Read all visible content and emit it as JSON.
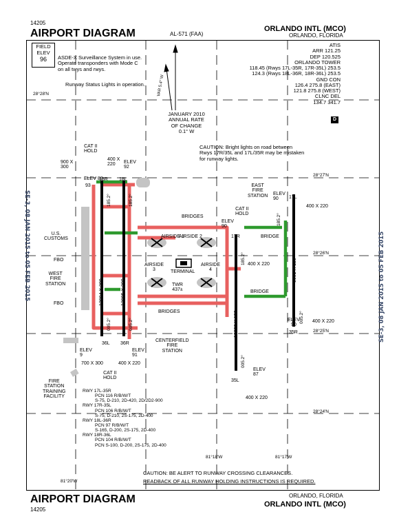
{
  "header": {
    "doc_number": "14205",
    "title": "AIRPORT DIAGRAM",
    "procedure_id": "AL-571 (FAA)",
    "airport_name": "ORLANDO INTL (MCO)",
    "location": "ORLANDO, FLORIDA"
  },
  "footer": {
    "title": "AIRPORT DIAGRAM",
    "doc_number": "14205",
    "location": "ORLANDO, FLORIDA",
    "airport_name": "ORLANDO INTL (MCO)"
  },
  "side_notes": {
    "left": "SE-3, 08 JAN 2015 to 05 FEB 2015",
    "right": "SE-3, 08 JAN 2015 to 05 FEB 2015"
  },
  "field_elev": {
    "label1": "FIELD",
    "label2": "ELEV",
    "value": "96"
  },
  "notes": {
    "asde_1": "ASDE-X Surveillance System in use.",
    "asde_2": "Operate transponders with Mode C",
    "asde_3": "on all twys and rwys.",
    "rwsl": "Runway Status Lights in operation.",
    "caution_lights_1": "CAUTION:  Bright lights on road between",
    "caution_lights_2": "Rwys 17R/35L and 17L/35R may be mistaken",
    "caution_lights_3": "for runway lights.",
    "caution_bottom_1": "CAUTION: BE ALERT TO RUNWAY CROSSING CLEARANCES.",
    "caution_bottom_2": "READBACK OF ALL RUNWAY HOLDING INSTRUCTIONS IS REQUIRED."
  },
  "frequencies": [
    "ATIS",
    "ARR 121.25",
    "DEP 120.525",
    "ORLANDO TOWER",
    "118.45 (Rwys 17L-35R, 17R-35L) 253.5",
    "124.3 (Rwys 18L-36R, 18R-36L) 253.5",
    "GND CON",
    "126.4 275.8 (EAST)",
    "121.8 275.8 (WEST)",
    "CLNC DEL",
    "134.7 341.7"
  ],
  "d_symbol": "D",
  "variation": {
    "label": "VAR 5.4° W",
    "change_1": "JANUARY 2010",
    "change_2": "ANNUAL RATE",
    "change_3": "OF CHANGE",
    "change_4": "0.1° W"
  },
  "latitudes": [
    "28°28'N",
    "28°27'N",
    "28°26'N",
    "28°25'N",
    "28°24'N"
  ],
  "longitudes": [
    "81°20'W",
    "81°18'W",
    "81°17'W"
  ],
  "runways": {
    "r18r_len": "12004 X 200",
    "r18l_len": "12005 X 200",
    "r17r_len": "10000 X 150",
    "r17l_len": "9001 X 150",
    "hdg_185": "185.2°",
    "hdg_005": "005.2°",
    "r18r": "18R",
    "r18l": "18L",
    "r36l": "36L",
    "r36r": "36R",
    "r17r": "17R",
    "r17l": "17L",
    "r35l": "35L",
    "r35r": "35R"
  },
  "labels": {
    "cat2_hold_top_1": "CAT II",
    "cat2_hold_top_2": "HOLD",
    "dim_900x300": "900 X",
    "dim_900x300b": "300",
    "dim_400x220_a": "400 X",
    "dim_400x220_ab": "220",
    "elev_92_a": "ELEV",
    "elev_92_b": "92",
    "elev_88_a": "ELEV 88",
    "elev_93": "93",
    "us_customs_1": "U.S.",
    "us_customs_2": "CUSTOMS",
    "fbo_top": "FBO",
    "fbo_bottom": "FBO",
    "west_fire_1": "WEST",
    "west_fire_2": "FIRE",
    "west_fire_3": "STATION",
    "bridges_top": "BRIDGES",
    "bridges_bottom": "BRIDGES",
    "airside1": "AIRSIDE 1",
    "airside2": "AIRSIDE 2",
    "airside3_a": "AIRSIDE",
    "airside3_b": "3",
    "airside4_a": "AIRSIDE",
    "airside4_b": "4",
    "terminal": "TERMINAL",
    "twr_a": "TWR",
    "twr_b": "437±",
    "cat2_hold_mid_1": "CAT II",
    "cat2_hold_mid_2": "HOLD",
    "elev_90_mid_a": "ELEV",
    "elev_90_mid_b": "90",
    "dim_400x220_mid": "400 X 220",
    "east_fire_1": "EAST",
    "east_fire_2": "FIRE",
    "east_fire_3": "STATION",
    "elev_90_ne_a": "ELEV",
    "elev_90_ne_b": "90",
    "dim_400x220_ne": "400 X 220",
    "bridge_east1": "BRIDGE",
    "bridge_east2": "BRIDGE",
    "elev_90_se_a": "ELEV",
    "elev_90_se_b": "90",
    "dim_400x220_se": "400 X 220",
    "centerfield_1": "CENTERFIELD",
    "centerfield_2": "FIRE",
    "centerfield_3": "STATION",
    "elev_91_a": "ELEV",
    "elev_91_b": "91",
    "elev_9_a": "ELEV",
    "elev_9_b": "9",
    "dim_700x300": "700 X 300",
    "dim_400x220_sw": "400 X 220",
    "cat2_hold_sw_1": "CAT II",
    "cat2_hold_sw_2": "HOLD",
    "elev_87_a": "ELEV",
    "elev_87_b": "87",
    "dim_400x220_s": "400 X 220",
    "fire_training_1": "FIRE",
    "fire_training_2": "STATION",
    "fire_training_3": "TRAINING",
    "fire_training_4": "FACILITY"
  },
  "pcn": [
    {
      "rwy": "RWY 17L-35R",
      "lines": [
        "PCN 116 R/B/W/T",
        "S-75, D-210, 2D-420, 2D/2D2-900"
      ]
    },
    {
      "rwy": "RWY 17R-35L",
      "lines": [
        "PCN 106 R/B/W/T",
        "S-75, D-210, 2S-175, 2D-400"
      ]
    },
    {
      "rwy": "RWY 18L-36R",
      "lines": [
        "PCN 97 R/B/W/T",
        "S-165, D-200, 2S-175, 2D-400"
      ]
    },
    {
      "rwy": "RWY 18R-36L",
      "lines": [
        "PCN 104 R/B/W/T",
        "PCN S-100, D-200, 2S-175, 2D-400"
      ]
    }
  ],
  "colors": {
    "hotspot_red": "#e24c4c",
    "hotspot_green": "#2e9a2e",
    "apron_gray": "#bdbdbd",
    "runway": "#000000"
  }
}
